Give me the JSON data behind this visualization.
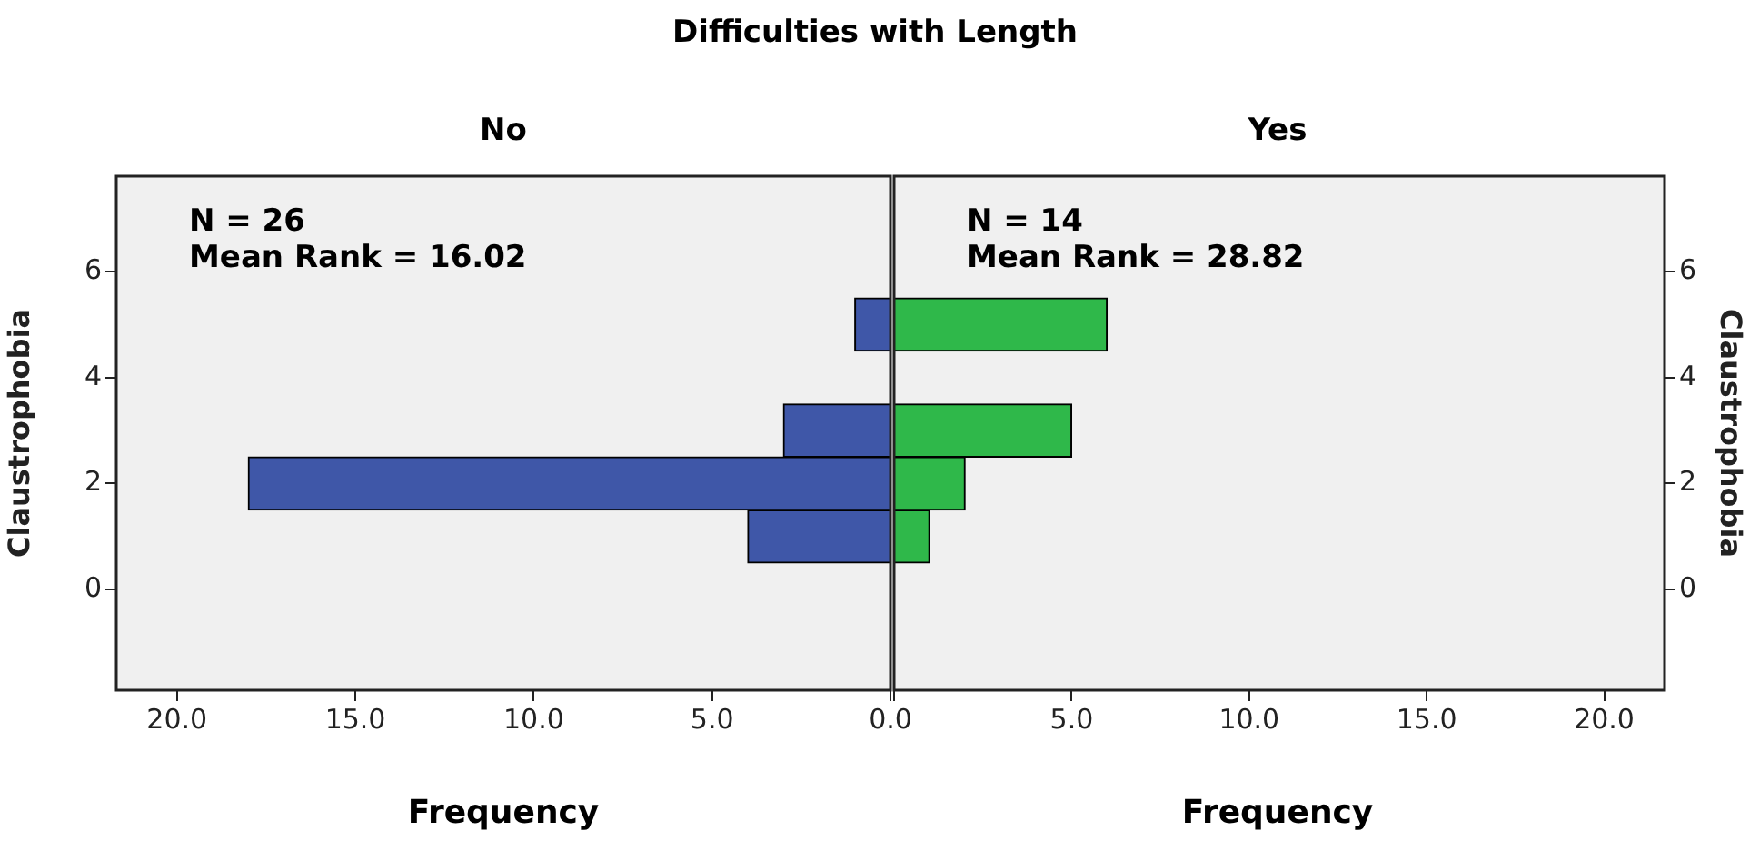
{
  "chart_data": [
    {
      "type": "histogram",
      "orientation": "horizontal",
      "title": "Difficulties with Length",
      "subtitle": "No",
      "xlabel": "Frequency",
      "ylabel": "Claustrophobia",
      "bins": [
        0.5,
        1.5,
        2.5,
        3.5,
        4.5,
        5.5
      ],
      "values": [
        4,
        18,
        3,
        0,
        1
      ],
      "color": "#3f57a8",
      "xlim": [
        21.7,
        0
      ],
      "xticks": [
        {
          "value": 20,
          "label": "20.0"
        },
        {
          "value": 15,
          "label": "15.0"
        },
        {
          "value": 10,
          "label": "10.0"
        },
        {
          "value": 5,
          "label": "5.0"
        },
        {
          "value": 0,
          "label": "0.0"
        }
      ],
      "ylim": [
        -1.9,
        7.8
      ],
      "yticks": [
        0,
        2,
        4,
        6
      ],
      "annotations": [
        "N = 26",
        "Mean Rank = 16.02"
      ]
    },
    {
      "type": "histogram",
      "orientation": "horizontal",
      "subtitle": "Yes",
      "xlabel": "Frequency",
      "ylabel": "Claustrophobia",
      "bins": [
        0.5,
        1.5,
        2.5,
        3.5,
        4.5,
        5.5
      ],
      "values": [
        1,
        2,
        5,
        0,
        6
      ],
      "color": "#2fb84a",
      "xlim": [
        0,
        21.7
      ],
      "xticks": [
        {
          "value": 0,
          "label": null
        },
        {
          "value": 5,
          "label": "5.0"
        },
        {
          "value": 10,
          "label": "10.0"
        },
        {
          "value": 15,
          "label": "15.0"
        },
        {
          "value": 20,
          "label": "20.0"
        }
      ],
      "ylim": [
        -1.9,
        7.8
      ],
      "yticks": [
        0,
        2,
        4,
        6
      ],
      "annotations": [
        "N = 14",
        "Mean Rank = 28.82"
      ]
    }
  ]
}
